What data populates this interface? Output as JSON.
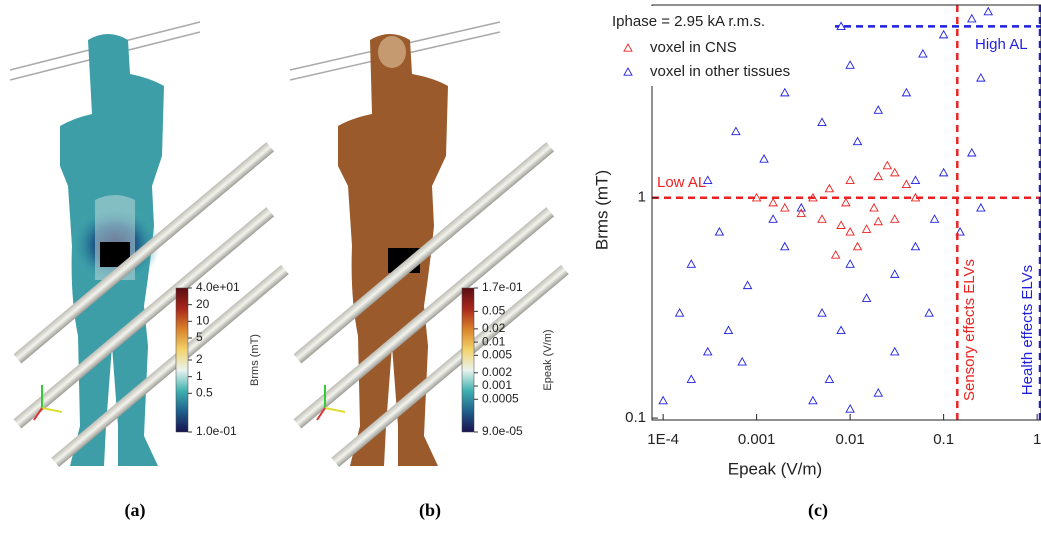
{
  "chart_data": [
    {
      "type": "colorbar",
      "panel_label": "(a)",
      "title": "Brms (mT)",
      "log": true,
      "clim": [
        0.1,
        40
      ],
      "ticks": [
        {
          "value": 40,
          "label": "4.0e+01"
        },
        20,
        10,
        5,
        2,
        1,
        0.5,
        {
          "value": 0.1,
          "label": "1.0e-01"
        }
      ],
      "colors": [
        "#17124f",
        "#1f5f8b",
        "#3fb1b0",
        "#e9f2ee",
        "#f3d36b",
        "#d9822b",
        "#a8271c",
        "#5a0d12"
      ]
    },
    {
      "type": "colorbar",
      "panel_label": "(b)",
      "title": "Epeak (V/m)",
      "log": true,
      "clim": [
        9e-05,
        0.17
      ],
      "ticks": [
        {
          "value": 0.17,
          "label": "1.7e-01"
        },
        0.05,
        0.02,
        0.01,
        0.005,
        0.002,
        0.001,
        0.0005,
        {
          "value": 9e-05,
          "label": "9.0e-05"
        }
      ],
      "colors": [
        "#17124f",
        "#1f5f8b",
        "#3fb1b0",
        "#e9f2ee",
        "#f3d36b",
        "#d9822b",
        "#a8271c",
        "#5a0d12"
      ]
    },
    {
      "type": "scatter",
      "panel_label": "(c)",
      "legend_title": "Iphase = 2.95 kA r.m.s.",
      "x_label": "Epeak (V/m)",
      "y_label": "Brms (mT)",
      "xlog": true,
      "ylog": true,
      "xlim": [
        7.6e-05,
        1.1
      ],
      "ylim": [
        0.098,
        7.5
      ],
      "xticks": [
        {
          "value": 0.0001,
          "label": "1E-4"
        },
        0.001,
        0.01,
        0.1,
        1
      ],
      "yticks": [
        0.1,
        1
      ],
      "series": [
        {
          "name": "voxel in other tissues",
          "color": "#1f1fe0",
          "x": [
            0.0001,
            0.0002,
            0.0003,
            0.00015,
            0.0005,
            0.0008,
            0.0002,
            0.0004,
            0.0003,
            0.0006,
            0.0012,
            0.002,
            0.003,
            0.004,
            0.006,
            0.01,
            0.02,
            0.03,
            0.005,
            0.008,
            0.015,
            0.002,
            0.01,
            0.03,
            0.05,
            0.08,
            0.1,
            0.2,
            0.25,
            0.15,
            0.02,
            0.04,
            0.06,
            0.1,
            0.2,
            0.3,
            0.01,
            0.005,
            0.0015,
            0.0007,
            0.05,
            0.07,
            0.003,
            0.008,
            0.012,
            0.25
          ],
          "values": [
            0.12,
            0.15,
            0.2,
            0.3,
            0.25,
            0.4,
            0.5,
            0.7,
            1.2,
            2,
            1.5,
            3,
            0.9,
            0.12,
            0.15,
            0.11,
            0.13,
            0.2,
            0.3,
            0.25,
            0.35,
            0.6,
            0.5,
            0.45,
            0.6,
            0.8,
            1.3,
            1.6,
            0.9,
            0.7,
            2.5,
            3,
            4.5,
            5.5,
            6.5,
            7,
            4,
            2.2,
            0.8,
            0.18,
            1.2,
            0.3,
            5,
            6,
            1.8,
            3.5
          ]
        },
        {
          "name": "voxel in CNS",
          "color": "#ee2222",
          "x": [
            0.002,
            0.003,
            0.005,
            0.008,
            0.01,
            0.015,
            0.02,
            0.03,
            0.004,
            0.006,
            0.01,
            0.02,
            0.03,
            0.04,
            0.05,
            0.012,
            0.007,
            0.0015,
            0.001,
            0.025,
            0.018,
            0.009
          ],
          "values": [
            0.9,
            0.85,
            0.8,
            0.75,
            0.7,
            0.72,
            0.78,
            0.8,
            1.0,
            1.1,
            1.2,
            1.25,
            1.3,
            1.15,
            1.0,
            0.6,
            0.55,
            0.95,
            1.0,
            1.4,
            0.9,
            0.95
          ]
        }
      ],
      "legend_order": [
        1,
        0
      ],
      "reference_lines": [
        {
          "label": "High AL",
          "axis": "y",
          "value": 6,
          "color": "#1f1fe0"
        },
        {
          "label": "Low AL",
          "axis": "y",
          "value": 1,
          "color": "#ee2222"
        },
        {
          "label": "Sensory effects ELVs",
          "axis": "x",
          "value": 0.14,
          "color": "#ee2222"
        },
        {
          "label": "Health effects ELVs",
          "axis": "x",
          "value": 1.1,
          "color": "#1f1fe0"
        }
      ]
    }
  ]
}
